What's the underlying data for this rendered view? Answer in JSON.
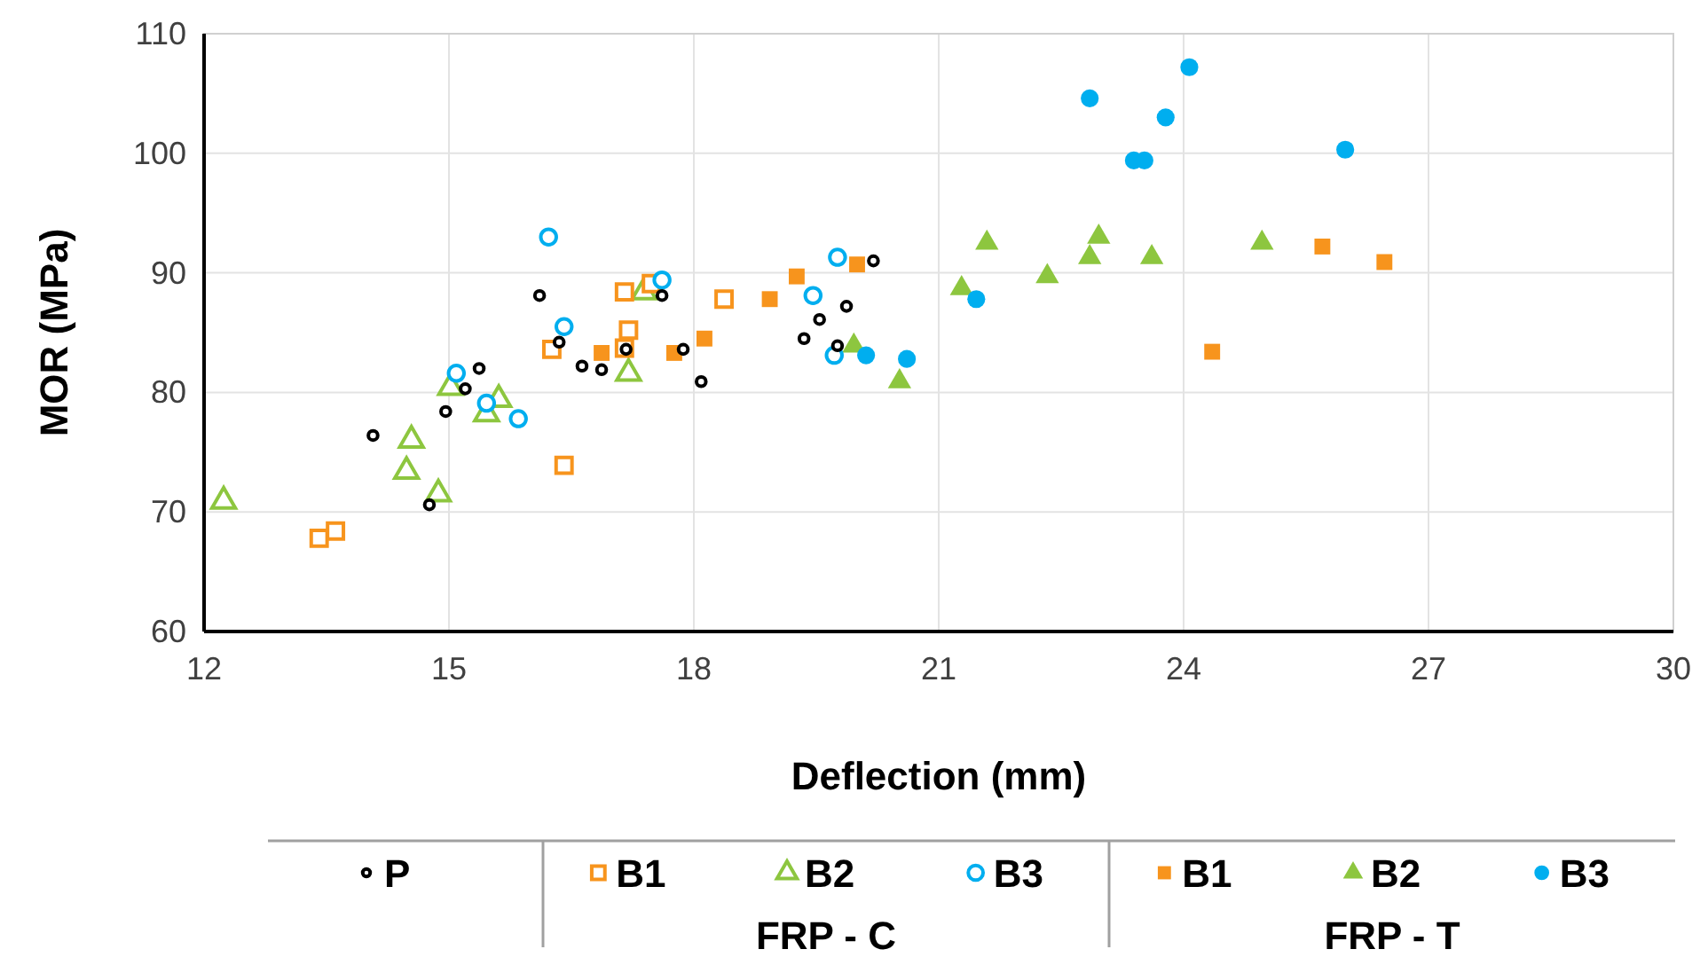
{
  "chart_data": {
    "type": "scatter",
    "xlabel": "Deflection (mm)",
    "ylabel": "MOR (MPa)",
    "xlim": [
      12,
      30
    ],
    "xticks": [
      12,
      15,
      18,
      21,
      24,
      27,
      30
    ],
    "ylim": [
      60,
      110
    ],
    "yticks": [
      60,
      70,
      80,
      90,
      100,
      110
    ],
    "grid": true,
    "legend": "bottom",
    "annotations": [
      "FRP - C",
      "FRP - T"
    ],
    "series": [
      {
        "name": "P",
        "color": "#000000",
        "marker": "circle",
        "x": [
          16.11,
          16.35,
          15.37,
          15.2,
          14.96,
          14.07,
          14.76,
          16.63,
          16.87,
          17.17,
          17.61,
          17.87,
          18.09,
          19.35,
          19.54,
          19.87,
          19.76,
          20.2
        ],
        "values": [
          88.1,
          84.2,
          82.0,
          80.3,
          78.4,
          76.4,
          70.6,
          82.2,
          81.9,
          83.6,
          88.1,
          83.6,
          80.9,
          84.5,
          86.1,
          87.2,
          83.9,
          91.0
        ]
      },
      {
        "name": "B1",
        "color": "#f7941d",
        "marker": "square",
        "x": [
          13.41,
          13.61,
          16.41,
          16.26,
          17.15,
          17.2,
          17.15,
          17.48,
          18.37
        ],
        "values": [
          67.8,
          68.4,
          73.9,
          83.6,
          88.4,
          85.2,
          83.7,
          89.1,
          87.8
        ]
      },
      {
        "name": "B2",
        "color": "#8dc63f",
        "marker": "triangle",
        "x": [
          12.24,
          14.54,
          14.48,
          14.87,
          15.02,
          15.61,
          15.46,
          17.2,
          17.39
        ],
        "values": [
          70.9,
          76.0,
          73.4,
          71.5,
          80.4,
          79.4,
          78.2,
          81.6,
          88.4
        ]
      },
      {
        "name": "B3",
        "color": "#00aeef",
        "marker": "circle",
        "x": [
          15.09,
          15.46,
          15.85,
          16.41,
          16.22,
          17.61,
          19.46,
          19.76,
          19.72
        ],
        "values": [
          81.6,
          79.1,
          77.8,
          85.5,
          93.0,
          89.4,
          88.1,
          91.3,
          83.1
        ]
      },
      {
        "name": "B1",
        "color": "#f7941d",
        "marker": "square",
        "x": [
          16.87,
          17.76,
          18.13,
          18.93,
          19.26,
          20.0,
          25.7,
          26.46,
          24.35
        ],
        "values": [
          83.3,
          83.3,
          84.5,
          87.8,
          89.7,
          90.7,
          92.2,
          90.9,
          83.4
        ]
      },
      {
        "name": "B2",
        "color": "#8dc63f",
        "marker": "triangle",
        "x": [
          19.96,
          20.52,
          21.28,
          21.59,
          22.33,
          22.85,
          22.96,
          23.61,
          24.96
        ],
        "values": [
          83.9,
          80.9,
          88.7,
          92.5,
          89.7,
          91.3,
          93.0,
          91.3,
          92.5
        ]
      },
      {
        "name": "B3",
        "color": "#00aeef",
        "marker": "circle",
        "x": [
          20.11,
          20.61,
          21.46,
          22.85,
          24.07,
          23.78,
          23.39,
          23.52,
          25.98
        ],
        "values": [
          83.1,
          82.8,
          87.8,
          104.6,
          107.2,
          103.0,
          99.4,
          99.4,
          100.3
        ]
      }
    ]
  }
}
